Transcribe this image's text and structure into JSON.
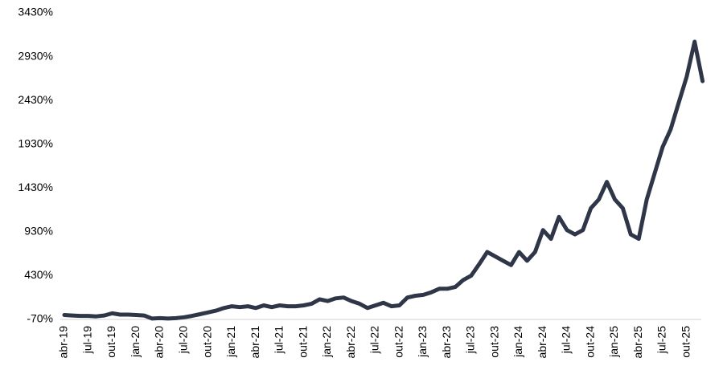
{
  "chart_data": {
    "type": "line",
    "categories": [
      "abr-19",
      null,
      null,
      "jul-19",
      null,
      null,
      "out-19",
      null,
      null,
      "jan-20",
      null,
      null,
      "abr-20",
      null,
      null,
      "jul-20",
      null,
      null,
      "out-20",
      null,
      null,
      "jan-21",
      null,
      null,
      "abr-21",
      null,
      null,
      "jul-21",
      null,
      null,
      "out-21",
      null,
      null,
      "jan-22",
      null,
      null,
      "abr-22",
      null,
      null,
      "jul-22",
      null,
      null,
      "out-22",
      null,
      null,
      "jan-23",
      null,
      null,
      "abr-23",
      null,
      null,
      "jul-23",
      null,
      null,
      "out-23",
      null,
      null,
      "jan-24",
      null,
      null,
      "abr-24",
      null,
      null,
      "jul-24",
      null,
      null,
      "out-24",
      null,
      null,
      "jan-25",
      null,
      null,
      "abr-25",
      null,
      null,
      "jul-25",
      null,
      null,
      "out-25",
      null,
      null
    ],
    "values": [
      -20,
      -25,
      -30,
      -30,
      -35,
      -25,
      0,
      -15,
      -15,
      -20,
      -25,
      -60,
      -55,
      -60,
      -55,
      -45,
      -30,
      -10,
      10,
      30,
      60,
      80,
      70,
      80,
      60,
      90,
      70,
      90,
      80,
      80,
      90,
      110,
      160,
      140,
      170,
      180,
      140,
      110,
      60,
      90,
      120,
      80,
      90,
      180,
      200,
      210,
      240,
      280,
      280,
      300,
      380,
      430,
      560,
      700,
      650,
      600,
      550,
      700,
      600,
      700,
      950,
      850,
      1100,
      950,
      900,
      950,
      1200,
      1300,
      1500,
      1300,
      1200,
      900,
      850,
      1300,
      1600,
      1900,
      2100,
      2400,
      2700,
      3100,
      2650
    ],
    "color": "#2e3648",
    "ylim": [
      -70,
      3430
    ],
    "yticks": [
      {
        "value": -70,
        "label": "-70%"
      },
      {
        "value": 430,
        "label": "430%"
      },
      {
        "value": 930,
        "label": "930%"
      },
      {
        "value": 1430,
        "label": "1430%"
      },
      {
        "value": 1930,
        "label": "1930%"
      },
      {
        "value": 2430,
        "label": "2430%"
      },
      {
        "value": 2930,
        "label": "2930%"
      },
      {
        "value": 3430,
        "label": "3430%"
      }
    ],
    "grid": false
  }
}
